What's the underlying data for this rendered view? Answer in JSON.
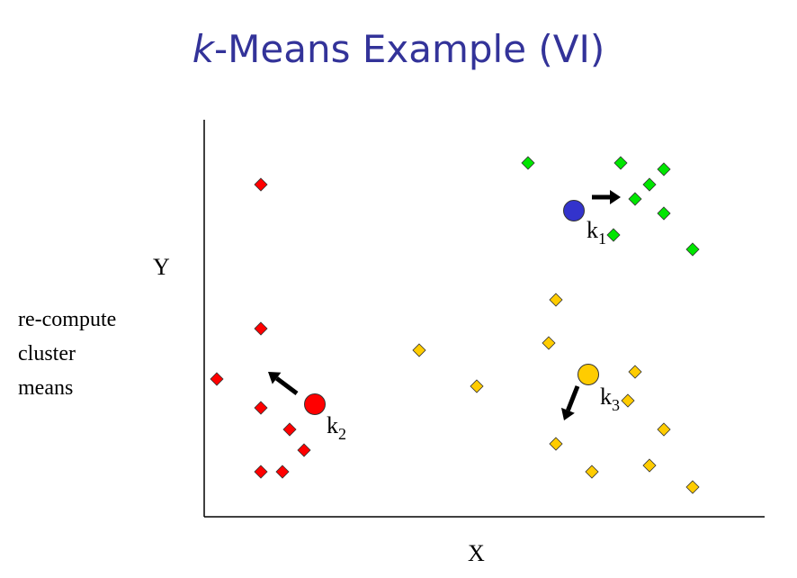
{
  "title": {
    "prefix": "k",
    "rest": "-Means Example (VI)"
  },
  "y_label": "Y",
  "x_label": "X",
  "note_lines": [
    "re-compute",
    "cluster",
    "means"
  ],
  "colors": {
    "title": "#333399",
    "cluster_1": "#00e600",
    "cluster_2": "#ff0000",
    "cluster_3": "#ffcc00",
    "centroid_1": "#3333cc",
    "centroid_2": "#ff0000",
    "centroid_3": "#ffcc00"
  },
  "centroids": [
    {
      "name": "k",
      "sub": "1",
      "cluster": "cluster_1"
    },
    {
      "name": "k",
      "sub": "2",
      "cluster": "cluster_2"
    },
    {
      "name": "k",
      "sub": "3",
      "cluster": "cluster_3"
    }
  ]
}
